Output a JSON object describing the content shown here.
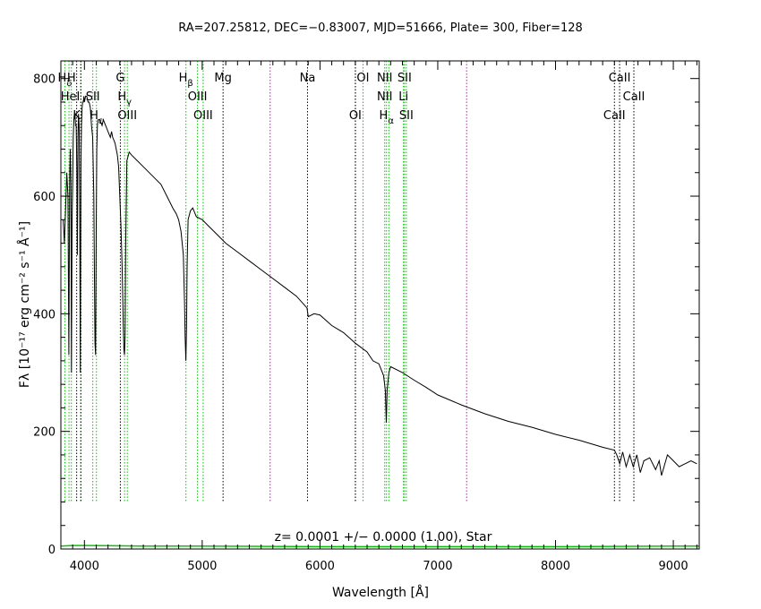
{
  "chart_data": {
    "type": "line",
    "title": "RA=207.25812, DEC=−0.83007, MJD=51666, Plate=  300, Fiber=128",
    "xlabel": "Wavelength [Å]",
    "ylabel": "Fλ [10⁻¹⁷ erg cm⁻² s⁻¹ Å⁻¹]",
    "xlim": [
      3800,
      9220
    ],
    "ylim": [
      0,
      830
    ],
    "xticks": [
      4000,
      5000,
      6000,
      7000,
      8000,
      9000
    ],
    "yticks": [
      0,
      200,
      400,
      600,
      800
    ],
    "grid": false,
    "annotation": "z= 0.0001 +/− 0.0000 (1.00), Star",
    "colors": {
      "spectrum": "#000000",
      "error": "#00c800",
      "emission_line": "#00c800",
      "sky_line": "#e000e0",
      "absorption_line": "#000000"
    },
    "series": [
      {
        "type": "spectrum",
        "x": [
          3820,
          3830,
          3840,
          3850,
          3860,
          3868,
          3875,
          3880,
          3885,
          3890,
          3895,
          3900,
          3905,
          3910,
          3915,
          3920,
          3925,
          3930,
          3935,
          3940,
          3945,
          3950,
          3955,
          3960,
          3965,
          3970,
          3975,
          3980,
          3985,
          3990,
          3995,
          4000,
          4010,
          4020,
          4030,
          4040,
          4050,
          4060,
          4070,
          4080,
          4090,
          4095,
          4100,
          4105,
          4110,
          4115,
          4120,
          4130,
          4140,
          4150,
          4160,
          4170,
          4180,
          4190,
          4200,
          4210,
          4220,
          4230,
          4240,
          4250,
          4260,
          4270,
          4280,
          4290,
          4300,
          4310,
          4320,
          4330,
          4335,
          4340,
          4345,
          4350,
          4360,
          4380,
          4400,
          4450,
          4500,
          4550,
          4600,
          4650,
          4700,
          4750,
          4780,
          4800,
          4820,
          4840,
          4850,
          4855,
          4861,
          4867,
          4872,
          4880,
          4900,
          4920,
          4950,
          5000,
          5050,
          5100,
          5150,
          5200,
          5300,
          5400,
          5500,
          5600,
          5700,
          5800,
          5890,
          5900,
          5950,
          6000,
          6100,
          6200,
          6300,
          6400,
          6450,
          6500,
          6520,
          6540,
          6555,
          6563,
          6570,
          6585,
          6600,
          6700,
          6800,
          6900,
          7000,
          7200,
          7400,
          7600,
          7800,
          8000,
          8200,
          8400,
          8500,
          8520,
          8545,
          8570,
          8600,
          8630,
          8660,
          8690,
          8720,
          8750,
          8800,
          8850,
          8880,
          8900,
          8950,
          9000,
          9050,
          9100,
          9150,
          9200
        ],
        "y": [
          560,
          520,
          580,
          640,
          600,
          330,
          640,
          680,
          620,
          300,
          560,
          620,
          700,
          730,
          740,
          740,
          720,
          720,
          650,
          500,
          700,
          740,
          720,
          600,
          300,
          650,
          720,
          750,
          760,
          760,
          770,
          760,
          770,
          770,
          760,
          760,
          750,
          720,
          700,
          600,
          350,
          330,
          550,
          680,
          720,
          730,
          730,
          730,
          725,
          720,
          730,
          725,
          720,
          715,
          710,
          705,
          700,
          710,
          700,
          695,
          690,
          680,
          670,
          650,
          600,
          550,
          480,
          380,
          340,
          330,
          360,
          520,
          660,
          675,
          670,
          660,
          650,
          640,
          630,
          620,
          600,
          580,
          570,
          560,
          540,
          500,
          420,
          360,
          320,
          380,
          480,
          560,
          575,
          580,
          565,
          560,
          550,
          540,
          530,
          520,
          505,
          490,
          475,
          460,
          445,
          430,
          410,
          395,
          400,
          398,
          380,
          368,
          350,
          335,
          320,
          315,
          305,
          295,
          270,
          215,
          270,
          300,
          310,
          300,
          287,
          275,
          262,
          245,
          230,
          217,
          207,
          195,
          185,
          173,
          168,
          160,
          145,
          165,
          140,
          160,
          140,
          160,
          130,
          150,
          155,
          135,
          150,
          125,
          160,
          150,
          140,
          145,
          150,
          145
        ]
      },
      {
        "type": "error",
        "x": [
          3800,
          3900,
          4000,
          4500,
          5000,
          6000,
          7000,
          8000,
          9000,
          9220
        ],
        "y": [
          5,
          6,
          6,
          5,
          5,
          4,
          4,
          4,
          5,
          5
        ]
      }
    ],
    "vlines": [
      {
        "x": 3834,
        "kind": "emission"
      },
      {
        "x": 3869,
        "kind": "emission"
      },
      {
        "x": 3889,
        "kind": "emission"
      },
      {
        "x": 3934,
        "kind": "absorption"
      },
      {
        "x": 3970,
        "kind": "emission"
      },
      {
        "x": 3969,
        "kind": "absorption"
      },
      {
        "x": 4071,
        "kind": "emission"
      },
      {
        "x": 4102,
        "kind": "emission"
      },
      {
        "x": 4305,
        "kind": "absorption"
      },
      {
        "x": 4341,
        "kind": "emission"
      },
      {
        "x": 4364,
        "kind": "emission"
      },
      {
        "x": 4862,
        "kind": "emission"
      },
      {
        "x": 4960,
        "kind": "emission"
      },
      {
        "x": 5008,
        "kind": "emission"
      },
      {
        "x": 5177,
        "kind": "absorption"
      },
      {
        "x": 5577,
        "kind": "sky"
      },
      {
        "x": 5894,
        "kind": "absorption"
      },
      {
        "x": 6302,
        "kind": "emission"
      },
      {
        "x": 6300,
        "kind": "absorption"
      },
      {
        "x": 6365,
        "kind": "emission"
      },
      {
        "x": 6550,
        "kind": "emission"
      },
      {
        "x": 6565,
        "kind": "emission"
      },
      {
        "x": 6585,
        "kind": "emission"
      },
      {
        "x": 6709,
        "kind": "emission"
      },
      {
        "x": 6718,
        "kind": "emission"
      },
      {
        "x": 6733,
        "kind": "emission"
      },
      {
        "x": 7245,
        "kind": "sky"
      },
      {
        "x": 8500,
        "kind": "absorption"
      },
      {
        "x": 8544,
        "kind": "absorption"
      },
      {
        "x": 8665,
        "kind": "absorption"
      }
    ],
    "line_labels": [
      {
        "text": "H",
        "x": 3834,
        "row": 1,
        "sub": "δ"
      },
      {
        "text": "H",
        "x": 3889,
        "row": 1
      },
      {
        "text": "HeI",
        "x": 3880,
        "row": 2
      },
      {
        "text": "SII",
        "x": 4071,
        "row": 2
      },
      {
        "text": "K",
        "x": 3934,
        "row": 3
      },
      {
        "text": "H",
        "x": 4102,
        "row": 3,
        "sub": "ε"
      },
      {
        "text": "G",
        "x": 4305,
        "row": 1
      },
      {
        "text": "H",
        "x": 4341,
        "row": 2,
        "sub": "γ"
      },
      {
        "text": "OIII",
        "x": 4364,
        "row": 3
      },
      {
        "text": "H",
        "x": 4862,
        "row": 1,
        "sub": "β"
      },
      {
        "text": "OIII",
        "x": 4960,
        "row": 2
      },
      {
        "text": "OIII",
        "x": 5008,
        "row": 3
      },
      {
        "text": "Mg",
        "x": 5177,
        "row": 1
      },
      {
        "text": "Na",
        "x": 5894,
        "row": 1
      },
      {
        "text": "OI",
        "x": 6365,
        "row": 1
      },
      {
        "text": "OI",
        "x": 6300,
        "row": 3
      },
      {
        "text": "NII",
        "x": 6550,
        "row": 1
      },
      {
        "text": "SII",
        "x": 6718,
        "row": 1
      },
      {
        "text": "NII",
        "x": 6550,
        "row": 2
      },
      {
        "text": "Li",
        "x": 6709,
        "row": 2
      },
      {
        "text": "H",
        "x": 6565,
        "row": 3,
        "sub": "α"
      },
      {
        "text": "SII",
        "x": 6733,
        "row": 3
      },
      {
        "text": "CaII",
        "x": 8544,
        "row": 1
      },
      {
        "text": "CaII",
        "x": 8665,
        "row": 2
      },
      {
        "text": "CaII",
        "x": 8500,
        "row": 3
      }
    ]
  }
}
